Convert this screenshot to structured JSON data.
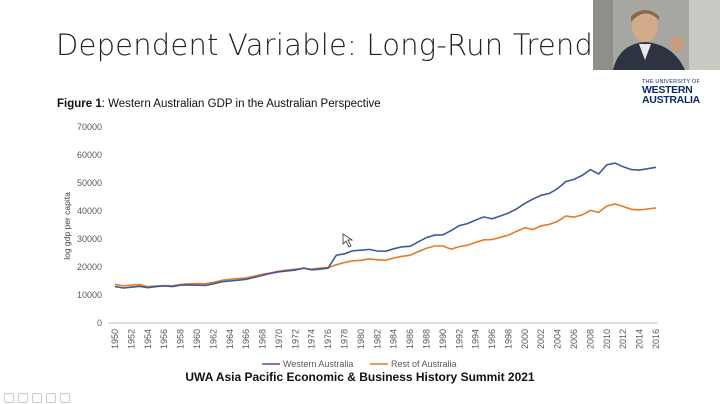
{
  "slide": {
    "title": "Dependent Variable: Long-Run Trend",
    "figure_label": "Figure 1",
    "figure_caption": ": Western Australian GDP in the Australian Perspective",
    "footer": "UWA Asia Pacific Economic & Business History Summit 2021"
  },
  "logo": {
    "line1": "THE UNIVERSITY OF",
    "line2": "WESTERN",
    "line3": "AUSTRALIA"
  },
  "colors": {
    "wa": "#3d5a99",
    "roa": "#e07b2a",
    "axis": "#bfbfbf",
    "brand": "#0b2a66"
  },
  "chart_data": {
    "type": "line",
    "ylabel": "log gdp per capita",
    "ylim": [
      0,
      70000
    ],
    "yticks": [
      0,
      10000,
      20000,
      30000,
      40000,
      50000,
      60000,
      70000
    ],
    "ytick_labels": [
      "0",
      "10000",
      "20000",
      "30000",
      "40000",
      "50000",
      "60000",
      "70000"
    ],
    "xticks": [
      "1950",
      "1952",
      "1954",
      "1956",
      "1958",
      "1960",
      "1962",
      "1964",
      "1966",
      "1968",
      "1970",
      "1972",
      "1974",
      "1976",
      "1978",
      "1980",
      "1982",
      "1984",
      "1986",
      "1988",
      "1990",
      "1992",
      "1994",
      "1996",
      "1998",
      "2000",
      "2002",
      "2004",
      "2006",
      "2008",
      "2010",
      "2012",
      "2014",
      "2016"
    ],
    "x": [
      1950,
      1951,
      1952,
      1953,
      1954,
      1955,
      1956,
      1957,
      1958,
      1959,
      1960,
      1961,
      1962,
      1963,
      1964,
      1965,
      1966,
      1967,
      1968,
      1969,
      1970,
      1971,
      1972,
      1973,
      1974,
      1975,
      1976,
      1977,
      1978,
      1979,
      1980,
      1981,
      1982,
      1983,
      1984,
      1985,
      1986,
      1987,
      1988,
      1989,
      1990,
      1991,
      1992,
      1993,
      1994,
      1995,
      1996,
      1997,
      1998,
      1999,
      2000,
      2001,
      2002,
      2003,
      2004,
      2005,
      2006,
      2007,
      2008,
      2009,
      2010,
      2011,
      2012,
      2013,
      2014,
      2015,
      2016
    ],
    "series": [
      {
        "name": "Western Australia",
        "values": [
          13000,
          12500,
          12800,
          13100,
          12600,
          13000,
          13200,
          13000,
          13500,
          13600,
          13500,
          13400,
          14000,
          14700,
          15000,
          15300,
          15600,
          16300,
          17000,
          17700,
          18300,
          18600,
          18900,
          19600,
          19000,
          19200,
          19600,
          24200,
          24700,
          25800,
          26000,
          26300,
          25700,
          25600,
          26500,
          27200,
          27400,
          29000,
          30500,
          31400,
          31500,
          33000,
          34800,
          35500,
          36800,
          37900,
          37200,
          38200,
          39300,
          40800,
          42700,
          44300,
          45600,
          46300,
          48000,
          50500,
          51300,
          52700,
          54800,
          53200,
          56500,
          57100,
          55800,
          54800,
          54600,
          55100,
          55600
        ]
      },
      {
        "name": "Rest of Australia",
        "values": [
          13800,
          13300,
          13500,
          13700,
          13000,
          13200,
          13400,
          13300,
          13800,
          14000,
          14100,
          14000,
          14500,
          15200,
          15600,
          15900,
          16100,
          16700,
          17400,
          17900,
          18500,
          18900,
          19200,
          19500,
          19200,
          19600,
          19800,
          20800,
          21600,
          22200,
          22400,
          22900,
          22600,
          22400,
          23200,
          23800,
          24200,
          25500,
          26700,
          27500,
          27500,
          26400,
          27300,
          27800,
          28800,
          29700,
          29800,
          30600,
          31400,
          32800,
          34000,
          33400,
          34700,
          35200,
          36300,
          38200,
          37800,
          38600,
          40200,
          39500,
          41800,
          42500,
          41600,
          40600,
          40400,
          40700,
          41100
        ]
      }
    ],
    "legend": "bottom"
  }
}
